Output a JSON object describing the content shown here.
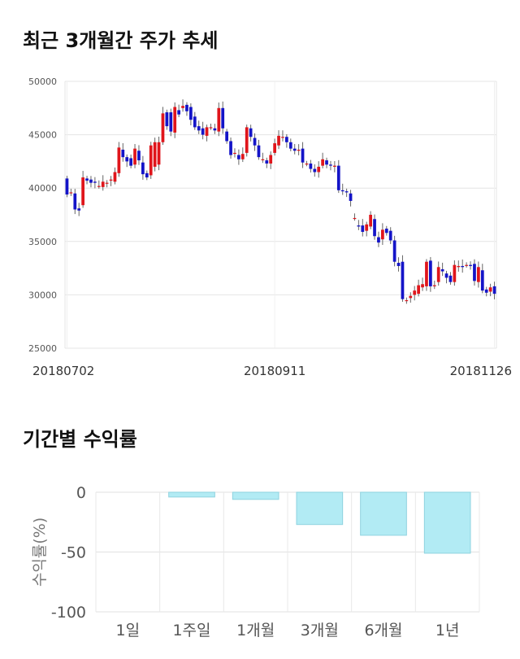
{
  "sections": {
    "price_title": "최근 3개월간 주가 추세",
    "return_title": "기간별 수익률"
  },
  "chart_data": [
    {
      "type": "candlestick",
      "title": "최근 3개월간 주가 추세",
      "ylim": [
        25000,
        50000
      ],
      "y_ticks": [
        "50000",
        "45000",
        "40000",
        "35000",
        "30000",
        "25000"
      ],
      "x_tick_labels": [
        "20180702",
        "20180911",
        "20181126"
      ],
      "grid": true,
      "colors": {
        "up": "#e0151b",
        "down": "#1414c8",
        "wick": "#666666"
      },
      "candles": [
        [
          40900,
          39400
        ],
        [
          39600,
          39600
        ],
        [
          39500,
          38000
        ],
        [
          38100,
          37900
        ],
        [
          38400,
          41000
        ],
        [
          40900,
          40700
        ],
        [
          40800,
          40500
        ],
        [
          40600,
          40500
        ],
        [
          40200,
          40200
        ],
        [
          40100,
          40600
        ],
        [
          40500,
          40500
        ],
        [
          40700,
          40800
        ],
        [
          40600,
          41500
        ],
        [
          41400,
          43800
        ],
        [
          43600,
          42900
        ],
        [
          42900,
          42500
        ],
        [
          42800,
          42100
        ],
        [
          42200,
          43700
        ],
        [
          43500,
          42600
        ],
        [
          42400,
          41300
        ],
        [
          41400,
          41000
        ],
        [
          41200,
          44000
        ],
        [
          42000,
          44300
        ],
        [
          42200,
          44300
        ],
        [
          44300,
          47000
        ],
        [
          47100,
          45800
        ],
        [
          47100,
          45300
        ],
        [
          45200,
          47600
        ],
        [
          47300,
          46900
        ],
        [
          47500,
          47700
        ],
        [
          47800,
          47200
        ],
        [
          47600,
          46400
        ],
        [
          46700,
          45700
        ],
        [
          45800,
          45400
        ],
        [
          45600,
          45000
        ],
        [
          44900,
          45700
        ],
        [
          45700,
          45700
        ],
        [
          45600,
          45400
        ],
        [
          45300,
          47500
        ],
        [
          47500,
          45600
        ],
        [
          45300,
          44400
        ],
        [
          44400,
          43100
        ],
        [
          43300,
          43300
        ],
        [
          43100,
          42700
        ],
        [
          42700,
          43200
        ],
        [
          43300,
          45700
        ],
        [
          45600,
          44800
        ],
        [
          44700,
          44000
        ],
        [
          44000,
          42900
        ],
        [
          42700,
          42700
        ],
        [
          42600,
          42300
        ],
        [
          42300,
          43100
        ],
        [
          43300,
          44200
        ],
        [
          44000,
          44900
        ],
        [
          44800,
          44800
        ],
        [
          44800,
          44300
        ],
        [
          44300,
          43700
        ],
        [
          43700,
          43500
        ],
        [
          43500,
          43600
        ],
        [
          43700,
          42400
        ],
        [
          42300,
          42300
        ],
        [
          42300,
          41800
        ],
        [
          41800,
          41500
        ],
        [
          41500,
          42000
        ],
        [
          42100,
          42700
        ],
        [
          42600,
          42200
        ],
        [
          42200,
          42100
        ],
        [
          42000,
          42100
        ],
        [
          42100,
          39800
        ],
        [
          39800,
          39700
        ],
        [
          39700,
          39600
        ],
        [
          39500,
          38800
        ],
        [
          37200,
          37200
        ],
        [
          36500,
          36400
        ],
        [
          36500,
          35900
        ],
        [
          36000,
          36600
        ],
        [
          36400,
          37500
        ],
        [
          37100,
          35500
        ],
        [
          35400,
          34900
        ],
        [
          35200,
          36100
        ],
        [
          36200,
          35800
        ],
        [
          36000,
          35100
        ],
        [
          35100,
          33100
        ],
        [
          33000,
          32700
        ],
        [
          33100,
          29600
        ],
        [
          29500,
          29500
        ],
        [
          29700,
          29900
        ],
        [
          30000,
          30400
        ],
        [
          30100,
          30900
        ],
        [
          30700,
          31000
        ],
        [
          30800,
          33100
        ],
        [
          33200,
          30800
        ],
        [
          30800,
          30900
        ],
        [
          31200,
          32600
        ],
        [
          32400,
          32200
        ],
        [
          32000,
          31600
        ],
        [
          31800,
          31200
        ],
        [
          31200,
          32800
        ],
        [
          32600,
          32700
        ],
        [
          32700,
          32600
        ],
        [
          32800,
          32800
        ],
        [
          32800,
          32700
        ],
        [
          32900,
          31300
        ],
        [
          31200,
          32600
        ],
        [
          32300,
          30400
        ],
        [
          30500,
          30200
        ],
        [
          30300,
          30700
        ],
        [
          30800,
          30100
        ]
      ]
    },
    {
      "type": "bar",
      "title": "기간별 수익률",
      "categories": [
        "1일",
        "1주일",
        "1개월",
        "3개월",
        "6개월",
        "1년"
      ],
      "values": [
        0,
        -4,
        -6,
        -27,
        -36,
        -51
      ],
      "ylabel": "수익률(%)",
      "ylim": [
        -100,
        0
      ],
      "y_ticks": [
        "0",
        "-50",
        "-100"
      ],
      "grid": true,
      "bar_color": "#b2ebf4",
      "bar_border": "#8fd3df"
    }
  ]
}
